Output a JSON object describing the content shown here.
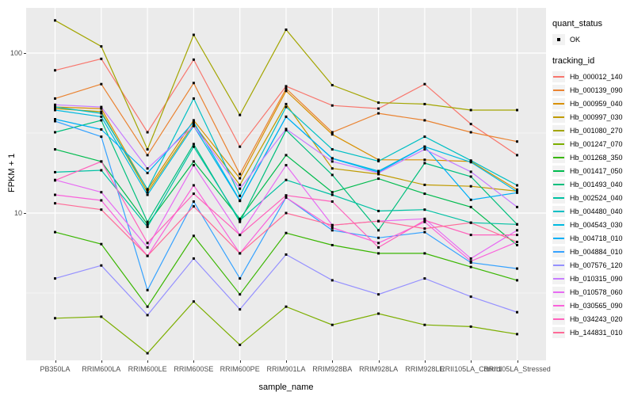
{
  "chart_data": {
    "type": "line",
    "title": "",
    "xlabel": "sample_name",
    "ylabel": "FPKM + 1",
    "y_scale": "log10",
    "y_ticks": [
      {
        "label": "100",
        "value": 100
      },
      {
        "label": "10",
        "value": 10
      }
    ],
    "y_minor_gridlines": [
      31.62,
      3.162
    ],
    "ylim_log": [
      1.2,
      190
    ],
    "grid": "on",
    "legend_position": "right",
    "panel_background": "#EBEBEB",
    "gridline_color": "#FFFFFF",
    "point_color": "#000000",
    "legend": {
      "quant_status_title": "quant_status",
      "quant_status_items": [
        {
          "label": "OK",
          "shape": "point"
        }
      ],
      "tracking_id_title": "tracking_id"
    },
    "x_categories": [
      "PB350LA",
      "RRIM600LA",
      "RRIM600LE",
      "RRIM600SE",
      "RRIM600PE",
      "RRIM901LA",
      "RRIM928BA",
      "RRIM928LA",
      "RRIM928LE",
      "RRII105LA_Control",
      "RRII105LA_Stressed"
    ],
    "series": [
      {
        "name": "Hb_000012_140",
        "color": "#F8766D",
        "values": [
          78,
          92,
          32,
          91,
          26,
          62,
          47,
          45,
          64,
          36,
          23
        ]
      },
      {
        "name": "Hb_000139_090",
        "color": "#EA8331",
        "values": [
          52,
          64,
          23,
          65,
          17.5,
          60,
          32,
          42,
          38,
          32,
          28
        ]
      },
      {
        "name": "Hb_000959_040",
        "color": "#D89000",
        "values": [
          46,
          45,
          14,
          38,
          16.5,
          58,
          31,
          21.5,
          21.5,
          21,
          14
        ]
      },
      {
        "name": "Hb_000997_030",
        "color": "#C09B00",
        "values": [
          45,
          43,
          13.5,
          36,
          15,
          48,
          19,
          17.5,
          15,
          14.7,
          13.7
        ]
      },
      {
        "name": "Hb_001080_270",
        "color": "#A3A500",
        "values": [
          160,
          110,
          25,
          130,
          41,
          140,
          63,
          49,
          48,
          44,
          44
        ]
      },
      {
        "name": "Hb_001247_070",
        "color": "#7CAE00",
        "values": [
          2.2,
          2.25,
          1.33,
          2.8,
          1.5,
          2.6,
          2.0,
          2.35,
          2.0,
          1.95,
          1.75
        ]
      },
      {
        "name": "Hb_001268_350",
        "color": "#39B600",
        "values": [
          7.6,
          6.4,
          2.6,
          7.2,
          3.1,
          7.5,
          6.3,
          5.6,
          5.6,
          4.6,
          3.8
        ]
      },
      {
        "name": "Hb_001417_050",
        "color": "#00BB4E",
        "values": [
          25,
          21,
          8.5,
          21,
          9.2,
          23,
          13.5,
          16.4,
          13.2,
          10.9,
          6.3
        ]
      },
      {
        "name": "Hb_001493_040",
        "color": "#00BF7D",
        "values": [
          32,
          38,
          8.8,
          27,
          8.8,
          33,
          17.3,
          7.8,
          20.5,
          16.9,
          8.5
        ]
      },
      {
        "name": "Hb_002524_040",
        "color": "#00C1A3",
        "values": [
          18,
          18.5,
          8.2,
          26,
          9.0,
          16.1,
          13.0,
          10.3,
          10.5,
          8.7,
          8.5
        ]
      },
      {
        "name": "Hb_004480_040",
        "color": "#00BFC4",
        "values": [
          46,
          42,
          14.1,
          52,
          12.8,
          46,
          25,
          21.1,
          30,
          21.3,
          14.9
        ]
      },
      {
        "name": "Hb_004543_030",
        "color": "#00BAE0",
        "values": [
          44,
          40,
          13,
          35,
          11.9,
          40,
          22,
          18.3,
          26,
          20.8,
          13.6
        ]
      },
      {
        "name": "Hb_004718_010",
        "color": "#00B0F6",
        "values": [
          38.6,
          33.3,
          17.8,
          37,
          12,
          40,
          21.9,
          18,
          26,
          12.1,
          13.4
        ]
      },
      {
        "name": "Hb_004884_010",
        "color": "#35A2FF",
        "values": [
          37.5,
          30,
          3.3,
          11.8,
          3.9,
          12.5,
          7.8,
          7.0,
          7.6,
          4.9,
          4.5
        ]
      },
      {
        "name": "Hb_007576_120",
        "color": "#9590FF",
        "values": [
          3.9,
          4.7,
          2.3,
          5.2,
          2.5,
          5.5,
          3.8,
          3.1,
          3.9,
          3.0,
          2.4
        ]
      },
      {
        "name": "Hb_010315_090",
        "color": "#C77CFF",
        "values": [
          47.5,
          46,
          19,
          35,
          14.2,
          33.5,
          21,
          17.8,
          25,
          18.1,
          10.9
        ]
      },
      {
        "name": "Hb_010578_060",
        "color": "#E76BF3",
        "values": [
          16.1,
          13.5,
          6.1,
          19.9,
          7.3,
          19.9,
          8.4,
          8.9,
          9.2,
          5.2,
          7.8
        ]
      },
      {
        "name": "Hb_030565_090",
        "color": "#FA62DB",
        "values": [
          13,
          12,
          5.4,
          14.9,
          5.6,
          12.5,
          8.1,
          6.5,
          8.8,
          5.0,
          6.6
        ]
      },
      {
        "name": "Hb_034243_020",
        "color": "#FF62BC",
        "values": [
          16,
          21,
          6.5,
          13.2,
          7.3,
          12.9,
          11.8,
          6.1,
          9.0,
          7.3,
          7.3
        ]
      },
      {
        "name": "Hb_144831_010",
        "color": "#FF6A98",
        "values": [
          11.5,
          10.5,
          5.4,
          11,
          5.6,
          10,
          8.4,
          8.9,
          8.0,
          8.7,
          6.6
        ]
      }
    ]
  }
}
